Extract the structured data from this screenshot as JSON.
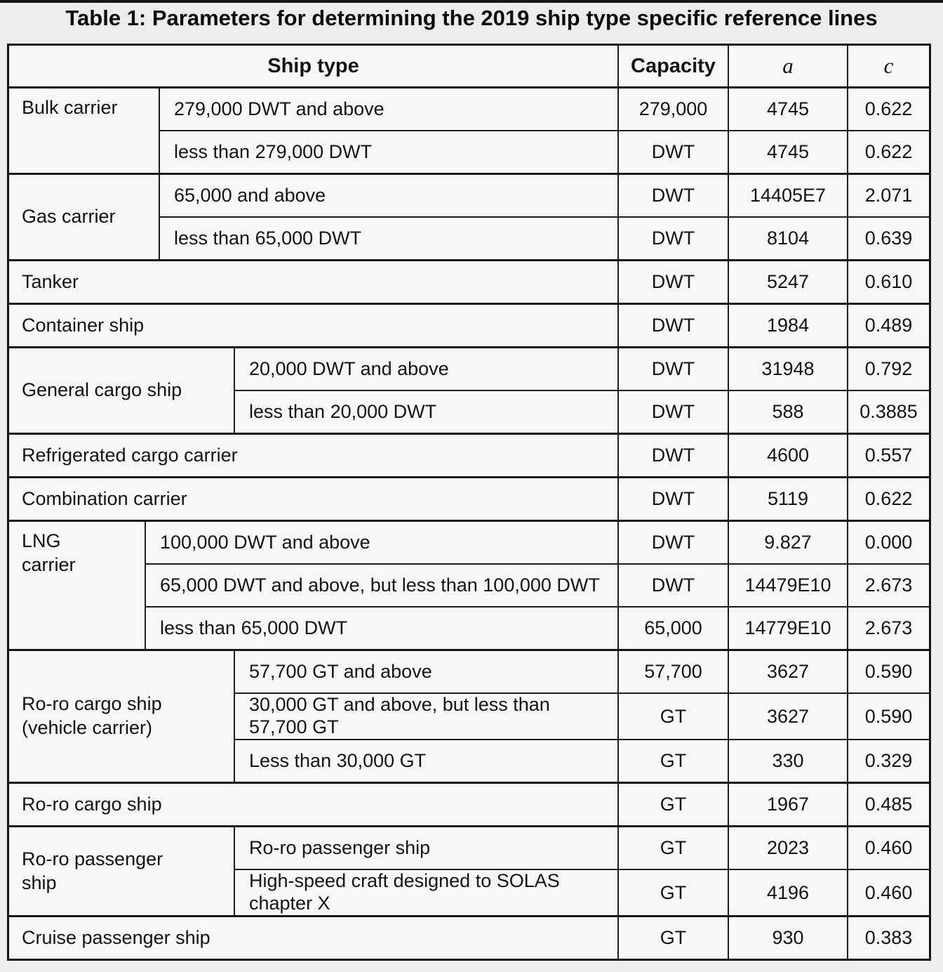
{
  "title": "Table 1: Parameters for determining the 2019 ship type specific reference lines",
  "header": {
    "ship_type": "Ship type",
    "capacity": "Capacity",
    "a": "a",
    "c": "c"
  },
  "groups": {
    "bulk": {
      "label": "Bulk carrier",
      "rows": [
        {
          "desc": "279,000 DWT and above",
          "capacity": "279,000",
          "a": "4745",
          "c": "0.622"
        },
        {
          "desc": "less than 279,000 DWT",
          "capacity": "DWT",
          "a": "4745",
          "c": "0.622"
        }
      ]
    },
    "gas": {
      "label": "Gas carrier",
      "rows": [
        {
          "desc": "65,000 and above",
          "capacity": "DWT",
          "a": "14405E7",
          "c": "2.071"
        },
        {
          "desc": "less than 65,000 DWT",
          "capacity": "DWT",
          "a": "8104",
          "c": "0.639"
        }
      ]
    },
    "tanker": {
      "label": "Tanker",
      "capacity": "DWT",
      "a": "5247",
      "c": "0.610"
    },
    "container": {
      "label": "Container ship",
      "capacity": "DWT",
      "a": "1984",
      "c": "0.489"
    },
    "general": {
      "label": "General cargo ship",
      "rows": [
        {
          "desc": "20,000 DWT and above",
          "capacity": "DWT",
          "a": "31948",
          "c": "0.792"
        },
        {
          "desc": "less than 20,000 DWT",
          "capacity": "DWT",
          "a": "588",
          "c": "0.3885"
        }
      ]
    },
    "reefer": {
      "label": "Refrigerated cargo carrier",
      "capacity": "DWT",
      "a": "4600",
      "c": "0.557"
    },
    "combination": {
      "label": "Combination carrier",
      "capacity": "DWT",
      "a": "5119",
      "c": "0.622"
    },
    "lng": {
      "label": "LNG carrier",
      "rows": [
        {
          "desc": "100,000 DWT and above",
          "capacity": "DWT",
          "a": "9.827",
          "c": "0.000"
        },
        {
          "desc": "65,000 DWT and above, but less than 100,000 DWT",
          "capacity": "DWT",
          "a": "14479E10",
          "c": "2.673"
        },
        {
          "desc": "less than 65,000 DWT",
          "capacity": "65,000",
          "a": "14779E10",
          "c": "2.673"
        }
      ]
    },
    "roro_vehicle": {
      "label": "Ro-ro cargo ship (vehicle carrier)",
      "rows": [
        {
          "desc": "57,700 GT and above",
          "capacity": "57,700",
          "a": "3627",
          "c": "0.590"
        },
        {
          "desc": "30,000 GT and above, but less than 57,700 GT",
          "capacity": "GT",
          "a": "3627",
          "c": "0.590"
        },
        {
          "desc": "Less than 30,000 GT",
          "capacity": "GT",
          "a": "330",
          "c": "0.329"
        }
      ]
    },
    "roro_cargo": {
      "label": "Ro-ro cargo ship",
      "capacity": "GT",
      "a": "1967",
      "c": "0.485"
    },
    "roro_pax": {
      "label": "Ro-ro passenger ship",
      "rows": [
        {
          "desc": "Ro-ro passenger ship",
          "capacity": "GT",
          "a": "2023",
          "c": "0.460"
        },
        {
          "desc": "High-speed craft designed to SOLAS chapter X",
          "capacity": "GT",
          "a": "4196",
          "c": "0.460"
        }
      ]
    },
    "cruise": {
      "label": "Cruise passenger ship",
      "capacity": "GT",
      "a": "930",
      "c": "0.383"
    }
  }
}
